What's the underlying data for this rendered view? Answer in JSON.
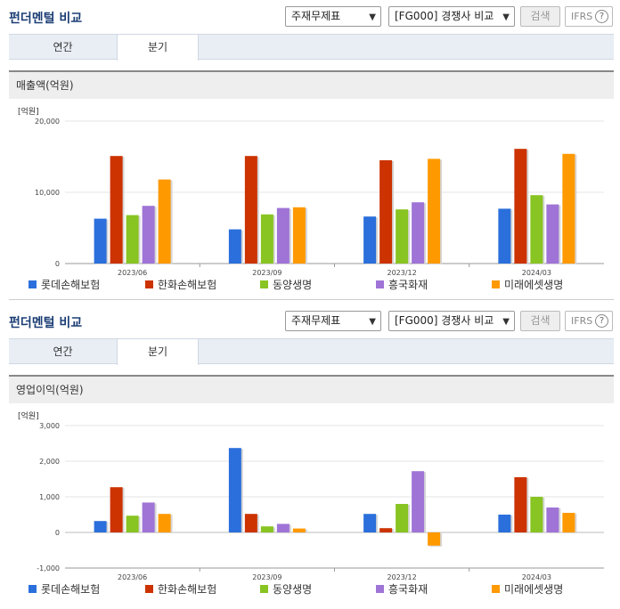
{
  "panels": [
    {
      "title": "펀더멘털 비교",
      "statement_select": "주재무제표",
      "peer_select": "[FG000] 경쟁사 비교",
      "search_label": "검색",
      "ifrs_label": "IFRS",
      "ifrs_help": "?",
      "tabs": [
        {
          "label": "연간"
        },
        {
          "label": "분기"
        }
      ],
      "active_tab": 1,
      "section_label": "매출액(억원)",
      "unit_label": "[억원]"
    },
    {
      "title": "펀더멘털 비교",
      "statement_select": "주재무제표",
      "peer_select": "[FG000] 경쟁사 비교",
      "search_label": "검색",
      "ifrs_label": "IFRS",
      "ifrs_help": "?",
      "tabs": [
        {
          "label": "연간"
        },
        {
          "label": "분기"
        }
      ],
      "active_tab": 1,
      "section_label": "영업이익(억원)",
      "unit_label": "[억원]"
    }
  ],
  "chart_data": [
    {
      "type": "bar",
      "title": "매출액(억원)",
      "ylabel": "[억원]",
      "categories": [
        "2023/06",
        "2023/09",
        "2023/12",
        "2024/03"
      ],
      "ylim": [
        0,
        20000
      ],
      "yticks": [
        0,
        10000,
        20000
      ],
      "ytick_labels": [
        "0",
        "10,000",
        "20,000"
      ],
      "grid": true,
      "legend": "bottom",
      "series": [
        {
          "name": "롯데손해보험",
          "color": "#2a6fdb",
          "values": [
            6300,
            4800,
            6600,
            7700
          ]
        },
        {
          "name": "한화손해보험",
          "color": "#cc3300",
          "values": [
            15100,
            15100,
            14500,
            16100
          ]
        },
        {
          "name": "동양생명",
          "color": "#88c422",
          "values": [
            6800,
            6900,
            7600,
            9600
          ]
        },
        {
          "name": "흥국화재",
          "color": "#9f74d6",
          "values": [
            8100,
            7800,
            8600,
            8300
          ]
        },
        {
          "name": "미래에셋생명",
          "color": "#ff9900",
          "values": [
            11800,
            7900,
            14700,
            15400
          ]
        }
      ]
    },
    {
      "type": "bar",
      "title": "영업이익(억원)",
      "ylabel": "[억원]",
      "categories": [
        "2023/06",
        "2023/09",
        "2023/12",
        "2024/03"
      ],
      "ylim": [
        -1000,
        3000
      ],
      "yticks": [
        -1000,
        0,
        1000,
        2000,
        3000
      ],
      "ytick_labels": [
        "-1,000",
        "0",
        "1,000",
        "2,000",
        "3,000"
      ],
      "grid": true,
      "legend": "bottom",
      "series": [
        {
          "name": "롯데손해보험",
          "color": "#2a6fdb",
          "values": [
            320,
            2370,
            520,
            500
          ]
        },
        {
          "name": "한화손해보험",
          "color": "#cc3300",
          "values": [
            1270,
            520,
            120,
            1550
          ]
        },
        {
          "name": "동양생명",
          "color": "#88c422",
          "values": [
            470,
            170,
            800,
            1000
          ]
        },
        {
          "name": "흥국화재",
          "color": "#9f74d6",
          "values": [
            840,
            240,
            1720,
            700
          ]
        },
        {
          "name": "미래에셋생명",
          "color": "#ff9900",
          "values": [
            520,
            110,
            -370,
            550
          ]
        }
      ]
    }
  ]
}
